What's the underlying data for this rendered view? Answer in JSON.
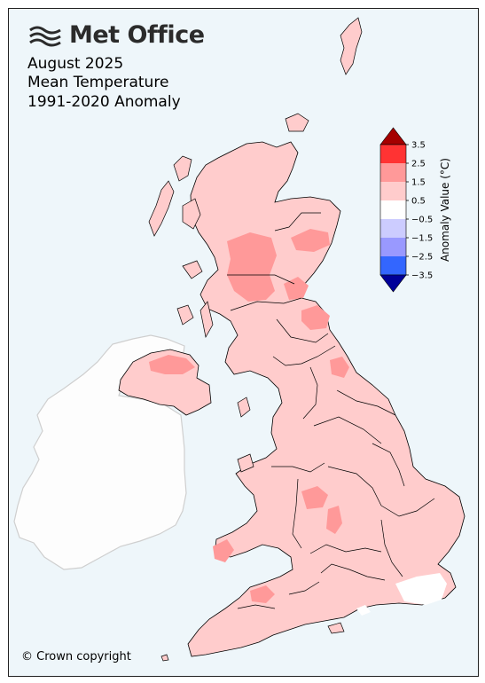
{
  "header": {
    "logo_text": "Met Office",
    "title_lines": [
      "August 2025",
      "Mean Temperature",
      "1991-2020 Anomaly"
    ]
  },
  "legend": {
    "title": "Anomaly Value (°C)",
    "ticks": [
      "3.5",
      "2.5",
      "1.5",
      "0.5",
      "−0.5",
      "−1.5",
      "−2.5",
      "−3.5"
    ],
    "bands": [
      {
        "range": "above 3.5",
        "color": "#a50000"
      },
      {
        "range": "2.5 to 3.5",
        "color": "#ff3333"
      },
      {
        "range": "1.5 to 2.5",
        "color": "#ff9999"
      },
      {
        "range": "0.5 to 1.5",
        "color": "#ffcccc"
      },
      {
        "range": "-0.5 to 0.5",
        "color": "#ffffff"
      },
      {
        "range": "-1.5 to -0.5",
        "color": "#ccccff"
      },
      {
        "range": "-2.5 to -1.5",
        "color": "#9999ff"
      },
      {
        "range": "-3.5 to -2.5",
        "color": "#3366ff"
      },
      {
        "range": "below -3.5",
        "color": "#000099"
      }
    ]
  },
  "map": {
    "background_color": "#eef6fa",
    "ireland_color": "#fdfdfd",
    "uk_base_color": "#ffcccc",
    "warm_patch_color": "#ff9999",
    "cool_patch_color": "#ffffff"
  },
  "footer": {
    "copyright": "© Crown copyright"
  }
}
